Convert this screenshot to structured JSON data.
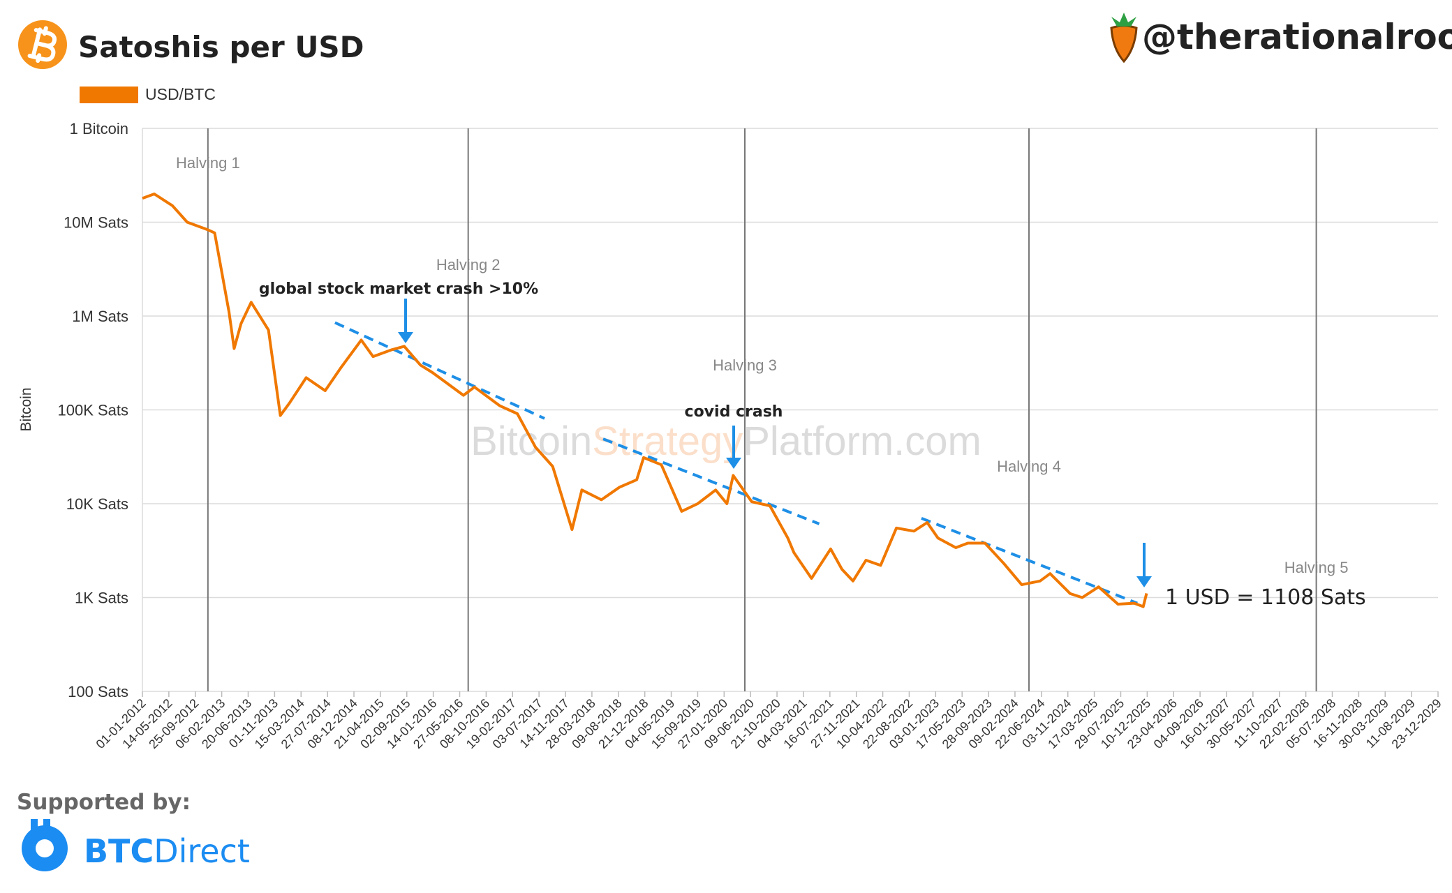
{
  "chart_data": {
    "type": "line",
    "title": "Satoshis per USD",
    "handle": "@therationalroot",
    "y_axis_label": "Bitcoin",
    "log_scale": true,
    "grid": true,
    "watermark": [
      "Bitcoin",
      "Strategy",
      "Platform.com"
    ],
    "sponsor": {
      "heading": "Supported by:",
      "brand_bold": "BTC",
      "brand_rest": "Direct"
    },
    "series": [
      {
        "name": "USD/BTC",
        "color": "#f07800",
        "x": [
          "01-01-2012",
          "01-03-2012",
          "01-06-2012",
          "15-08-2012",
          "28-11-2012",
          "01-01-2013",
          "15-03-2013",
          "10-04-2013",
          "15-05-2013",
          "05-07-2013",
          "01-10-2013",
          "30-11-2013",
          "15-01-2014",
          "10-04-2014",
          "15-07-2014",
          "05-10-2014",
          "14-01-2015",
          "15-03-2015",
          "15-06-2015",
          "20-08-2015",
          "10-11-2015",
          "10-01-2016",
          "15-06-2016",
          "10-08-2016",
          "15-12-2016",
          "15-03-2017",
          "15-06-2017",
          "10-09-2017",
          "17-12-2017",
          "05-02-2018",
          "15-05-2018",
          "15-08-2018",
          "10-11-2018",
          "15-12-2018",
          "15-03-2019",
          "26-06-2019",
          "15-09-2019",
          "15-12-2019",
          "10-02-2020",
          "13-03-2020",
          "15-06-2020",
          "15-09-2020",
          "15-12-2020",
          "15-01-2021",
          "14-04-2021",
          "20-07-2021",
          "15-09-2021",
          "10-11-2021",
          "15-01-2022",
          "30-03-2022",
          "18-06-2022",
          "15-09-2022",
          "21-11-2022",
          "15-01-2023",
          "15-04-2023",
          "15-06-2023",
          "10-09-2023",
          "15-12-2023",
          "14-03-2024",
          "15-06-2024",
          "05-08-2024",
          "15-11-2024",
          "15-01-2025",
          "08-04-2025",
          "15-07-2025",
          "05-10-2025",
          "20-11-2025",
          "07-12-2025"
        ],
        "values": [
          18000000,
          20000000,
          15000000,
          10000000,
          8300000,
          7700000,
          1100000,
          450000,
          830000,
          1400000,
          710000,
          87000,
          118000,
          220000,
          160000,
          285000,
          555000,
          370000,
          435000,
          476000,
          300000,
          250000,
          143000,
          175000,
          111000,
          91000,
          40000,
          25000,
          5300,
          14000,
          11000,
          15000,
          18000,
          31000,
          26000,
          8300,
          10000,
          14000,
          10000,
          20000,
          10500,
          9500,
          4300,
          3000,
          1600,
          3300,
          2000,
          1500,
          2500,
          2200,
          5500,
          5100,
          6300,
          4300,
          3400,
          3800,
          3800,
          2300,
          1370,
          1500,
          1800,
          1100,
          1000,
          1300,
          850,
          870,
          800,
          1108
        ]
      }
    ],
    "xlim": [
      "01-01-2012",
      "23-12-2029"
    ],
    "xticks": [
      "01-01-2012",
      "14-05-2012",
      "25-09-2012",
      "06-02-2013",
      "20-06-2013",
      "01-11-2013",
      "15-03-2014",
      "27-07-2014",
      "08-12-2014",
      "21-04-2015",
      "02-09-2015",
      "14-01-2016",
      "27-05-2016",
      "08-10-2016",
      "19-02-2017",
      "03-07-2017",
      "14-11-2017",
      "28-03-2018",
      "09-08-2018",
      "21-12-2018",
      "04-05-2019",
      "15-09-2019",
      "27-01-2020",
      "09-06-2020",
      "21-10-2020",
      "04-03-2021",
      "16-07-2021",
      "27-11-2021",
      "10-04-2022",
      "22-08-2022",
      "03-01-2023",
      "17-05-2023",
      "28-09-2023",
      "09-02-2024",
      "22-06-2024",
      "03-11-2024",
      "17-03-2025",
      "29-07-2025",
      "10-12-2025",
      "23-04-2026",
      "04-09-2026",
      "16-01-2027",
      "30-05-2027",
      "11-10-2027",
      "22-02-2028",
      "05-07-2028",
      "16-11-2028",
      "30-03-2029",
      "11-08-2029",
      "23-12-2029"
    ],
    "ylim": [
      100,
      100000000
    ],
    "yticks": [
      {
        "value": 100,
        "label": "100 Sats"
      },
      {
        "value": 1000,
        "label": "1K Sats"
      },
      {
        "value": 10000,
        "label": "10K Sats"
      },
      {
        "value": 100000,
        "label": "100K Sats"
      },
      {
        "value": 1000000,
        "label": "1M Sats"
      },
      {
        "value": 10000000,
        "label": "10M Sats"
      },
      {
        "value": 100000000,
        "label": "1 Bitcoin"
      }
    ],
    "halvings": [
      {
        "label": "Halving 1",
        "x": "28-11-2012"
      },
      {
        "label": "Halving 2",
        "x": "09-07-2016"
      },
      {
        "label": "Halving 3",
        "x": "11-05-2020"
      },
      {
        "label": "Halving 4",
        "x": "20-04-2024"
      },
      {
        "label": "Halving 5",
        "x": "15-04-2028"
      }
    ],
    "trend_lines": [
      {
        "color": "#1e8fe6",
        "x": [
          "03-09-2014",
          "31-07-2017"
        ],
        "y": [
          850000,
          81000
        ]
      },
      {
        "color": "#1e8fe6",
        "x": [
          "24-05-2018",
          "23-05-2021"
        ],
        "y": [
          49000,
          6100
        ]
      },
      {
        "color": "#1e8fe6",
        "x": [
          "23-10-2022",
          "21-10-2025"
        ],
        "y": [
          7000,
          870
        ]
      }
    ],
    "annotations": [
      "global stock market crash >10%",
      "covid crash",
      "1 USD = 1108 Sats"
    ]
  }
}
